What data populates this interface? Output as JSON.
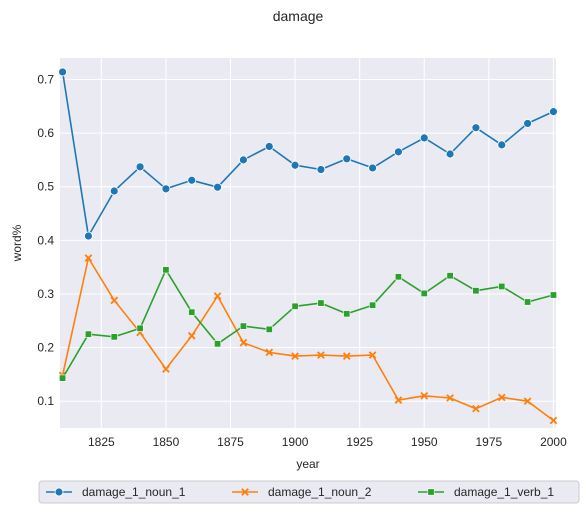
{
  "chart_data": {
    "type": "line",
    "title": "damage",
    "xlabel": "year",
    "ylabel": "word%",
    "xlim": [
      1809,
      2001
    ],
    "ylim": [
      0.05,
      0.74
    ],
    "xticks": [
      1825,
      1850,
      1875,
      1900,
      1925,
      1950,
      1975,
      2000
    ],
    "yticks": [
      0.1,
      0.2,
      0.3,
      0.4,
      0.5,
      0.6,
      0.7
    ],
    "ytick_labels": [
      "0.1",
      "0.2",
      "0.3",
      "0.4",
      "0.5",
      "0.6",
      "0.7"
    ],
    "grid": true,
    "background": "#eaeaf2",
    "legend_position": "bottom-center",
    "x": [
      1810,
      1820,
      1830,
      1840,
      1850,
      1860,
      1870,
      1880,
      1890,
      1900,
      1910,
      1920,
      1930,
      1940,
      1950,
      1960,
      1970,
      1980,
      1990,
      2000
    ],
    "series": [
      {
        "name": "damage_1_noun_1",
        "color": "#1f77b4",
        "marker": "circle",
        "values": [
          0.714,
          0.408,
          0.492,
          0.537,
          0.496,
          0.512,
          0.499,
          0.55,
          0.575,
          0.54,
          0.532,
          0.552,
          0.535,
          0.565,
          0.591,
          0.561,
          0.61,
          0.578,
          0.618,
          0.64
        ]
      },
      {
        "name": "damage_1_noun_2",
        "color": "#ff7f0e",
        "marker": "x",
        "values": [
          0.148,
          0.367,
          0.288,
          0.228,
          0.16,
          0.222,
          0.296,
          0.209,
          0.191,
          0.184,
          0.186,
          0.184,
          0.186,
          0.102,
          0.11,
          0.106,
          0.086,
          0.107,
          0.1,
          0.064
        ]
      },
      {
        "name": "damage_1_verb_1",
        "color": "#2ca02c",
        "marker": "square",
        "values": [
          0.143,
          0.225,
          0.22,
          0.236,
          0.345,
          0.266,
          0.207,
          0.24,
          0.234,
          0.277,
          0.283,
          0.263,
          0.279,
          0.332,
          0.301,
          0.334,
          0.306,
          0.314,
          0.285,
          0.298
        ]
      }
    ]
  }
}
